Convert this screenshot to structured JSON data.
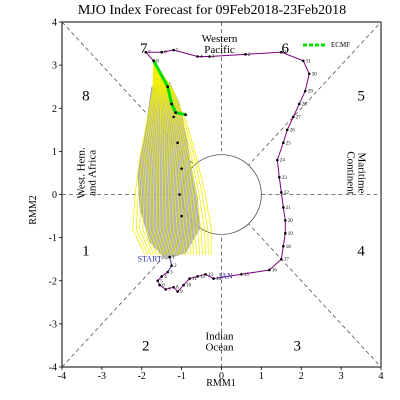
{
  "chart_data": {
    "type": "line",
    "title": "MJO Index Forecast for 09Feb2018-23Feb2018",
    "xlabel": "RMM1",
    "ylabel": "RMM2",
    "xlim": [
      -4,
      4
    ],
    "ylim": [
      -4,
      4
    ],
    "xticks": [
      "-4",
      "-3",
      "-2",
      "-1",
      "0",
      "1",
      "2",
      "3",
      "4"
    ],
    "yticks": [
      "-4",
      "-3",
      "-2",
      "-1",
      "0",
      "1",
      "2",
      "3",
      "4"
    ],
    "phases": [
      {
        "label": "1",
        "x": -3.4,
        "y": -1.3
      },
      {
        "label": "2",
        "x": -1.9,
        "y": -3.5
      },
      {
        "label": "3",
        "x": 1.9,
        "y": -3.5
      },
      {
        "label": "4",
        "x": 3.5,
        "y": -1.3
      },
      {
        "label": "5",
        "x": 3.5,
        "y": 2.3
      },
      {
        "label": "6",
        "x": 1.6,
        "y": 3.4
      },
      {
        "label": "7",
        "x": -1.95,
        "y": 3.4
      },
      {
        "label": "8",
        "x": -3.4,
        "y": 2.3
      }
    ],
    "regions": [
      {
        "name": "west-hem",
        "lines": [
          "West. Hem.",
          "and Africa"
        ],
        "x": -3.4,
        "y": 0.5,
        "rotate": -90
      },
      {
        "name": "maritime",
        "lines": [
          "Maritime",
          "Continent"
        ],
        "x": 3.4,
        "y": 0.5,
        "rotate": 90
      },
      {
        "name": "western-pacific",
        "lines": [
          "Western",
          "Pacific"
        ],
        "x": -0.05,
        "y": 3.5,
        "rotate": 0
      },
      {
        "name": "indian-ocean",
        "lines": [
          "Indian",
          "Ocean"
        ],
        "x": -0.05,
        "y": -3.4,
        "rotate": 0
      }
    ],
    "legend": {
      "label": "ECMF",
      "position": "top-right"
    },
    "start_label": {
      "text": "START",
      "x": -1.8,
      "y": -1.55
    },
    "month_labels": [
      {
        "text": "JAN",
        "x": 0.1,
        "y": -1.95
      }
    ],
    "observed": {
      "name": "observed",
      "color": "#800080",
      "points": [
        {
          "day": "1",
          "x": -1.3,
          "y": -1.45
        },
        {
          "day": "2",
          "x": -1.25,
          "y": -1.65
        },
        {
          "day": "3",
          "x": -1.35,
          "y": -1.8
        },
        {
          "day": "4",
          "x": -1.5,
          "y": -1.9
        },
        {
          "day": "5",
          "x": -1.6,
          "y": -2.0
        },
        {
          "day": "6",
          "x": -1.55,
          "y": -2.1
        },
        {
          "day": "7",
          "x": -1.4,
          "y": -2.2
        },
        {
          "day": "8",
          "x": -1.2,
          "y": -2.15
        },
        {
          "day": "9",
          "x": -1.1,
          "y": -2.25
        },
        {
          "day": "10",
          "x": -0.95,
          "y": -2.1
        },
        {
          "day": "11",
          "x": -0.8,
          "y": -1.95
        },
        {
          "day": "12",
          "x": -0.6,
          "y": -1.9
        },
        {
          "day": "13",
          "x": -0.4,
          "y": -1.85
        },
        {
          "day": "14",
          "x": -0.2,
          "y": -1.95
        },
        {
          "day": "15",
          "x": 0.5,
          "y": -1.85
        },
        {
          "day": "16",
          "x": 1.2,
          "y": -1.75
        },
        {
          "day": "17",
          "x": 1.5,
          "y": -1.5
        },
        {
          "day": "18",
          "x": 1.55,
          "y": -1.2
        },
        {
          "day": "19",
          "x": 1.6,
          "y": -0.9
        },
        {
          "day": "20",
          "x": 1.6,
          "y": -0.6
        },
        {
          "day": "21",
          "x": 1.55,
          "y": -0.3
        },
        {
          "day": "22",
          "x": 1.5,
          "y": 0.05
        },
        {
          "day": "23",
          "x": 1.45,
          "y": 0.4
        },
        {
          "day": "24",
          "x": 1.4,
          "y": 0.8
        },
        {
          "day": "25",
          "x": 1.55,
          "y": 1.2
        },
        {
          "day": "26",
          "x": 1.65,
          "y": 1.5
        },
        {
          "day": "27",
          "x": 1.8,
          "y": 1.8
        },
        {
          "day": "28",
          "x": 1.95,
          "y": 2.1
        },
        {
          "day": "29",
          "x": 2.1,
          "y": 2.4
        },
        {
          "day": "30",
          "x": 2.2,
          "y": 2.8
        },
        {
          "day": "31",
          "x": 2.05,
          "y": 3.1
        },
        {
          "day": "1",
          "x": 1.5,
          "y": 3.3
        },
        {
          "day": "2",
          "x": 0.6,
          "y": 3.25
        },
        {
          "day": "3",
          "x": -0.3,
          "y": 3.2
        },
        {
          "day": "4",
          "x": -0.6,
          "y": 3.2
        },
        {
          "day": "5",
          "x": -1.2,
          "y": 3.35
        },
        {
          "day": "6",
          "x": -1.5,
          "y": 3.3
        },
        {
          "day": "7",
          "x": -1.9,
          "y": 3.3
        },
        {
          "day": "8",
          "x": -1.7,
          "y": 3.1
        }
      ]
    },
    "ecmf_mean": {
      "name": "ECMF",
      "color": "#00dd00",
      "points": [
        {
          "x": -1.7,
          "y": 3.1
        },
        {
          "x": -1.35,
          "y": 2.5
        },
        {
          "x": -1.25,
          "y": 2.1
        },
        {
          "x": -1.15,
          "y": 1.9
        },
        {
          "x": -0.9,
          "y": 1.85
        }
      ]
    },
    "ensemble_mean_dots": [
      {
        "x": -1.2,
        "y": 1.8
      },
      {
        "x": -1.1,
        "y": 1.2
      },
      {
        "x": -1.0,
        "y": 0.6
      },
      {
        "x": -1.05,
        "y": 0.0
      },
      {
        "x": -1.0,
        "y": -0.5
      }
    ]
  }
}
